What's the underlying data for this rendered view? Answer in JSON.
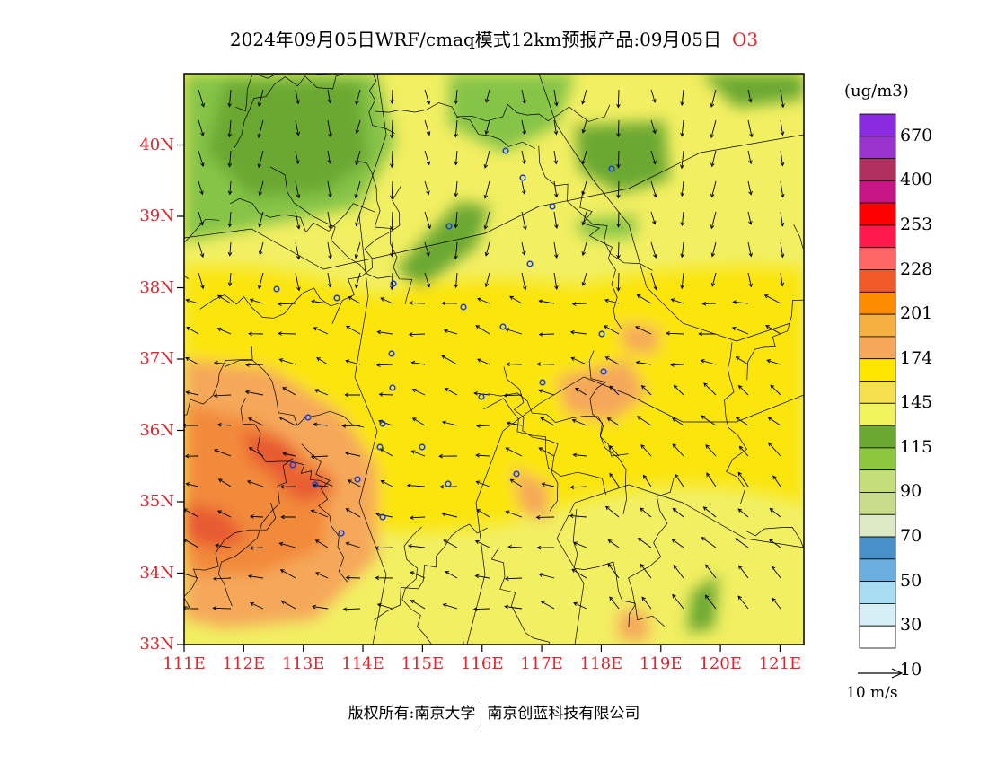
{
  "title": {
    "main": "2024年09月05日WRF/cmaq模式12km预报产品:09月05日",
    "pollutant": "O3"
  },
  "axes": {
    "lat_labels": [
      "40N",
      "39N",
      "38N",
      "37N",
      "36N",
      "35N",
      "34N",
      "33N"
    ],
    "lon_labels": [
      "111E",
      "112E",
      "113E",
      "114E",
      "115E",
      "116E",
      "117E",
      "118E",
      "119E",
      "120E",
      "121E"
    ],
    "lat_range": [
      33,
      41
    ],
    "lon_range": [
      111,
      121.4
    ]
  },
  "colorbar": {
    "unit": "(ug/m3)",
    "labels": [
      "670",
      "400",
      "253",
      "228",
      "201",
      "174",
      "145",
      "115",
      "90",
      "70",
      "50",
      "30",
      "10"
    ],
    "colors_top_to_bottom": [
      "#8a2be2",
      "#9a32cd",
      "#b03060",
      "#c71585",
      "#ff0000",
      "#ff1a4d",
      "#ff6666",
      "#f05a28",
      "#ff8c00",
      "#f5b041",
      "#f5a85a",
      "#ffe600",
      "#f4e04d",
      "#f2f25e",
      "#6aa832",
      "#8dc63f",
      "#c4df7a",
      "#c7dc8a",
      "#dde9c4",
      "#4a90c8",
      "#6aafe0",
      "#a8dcf0",
      "#d6eef6",
      "#ffffff"
    ]
  },
  "wind_reference": "10 m/s",
  "footer": {
    "left": "版权所有:南京大学",
    "right": "南京创蓝科技有限公司"
  }
}
